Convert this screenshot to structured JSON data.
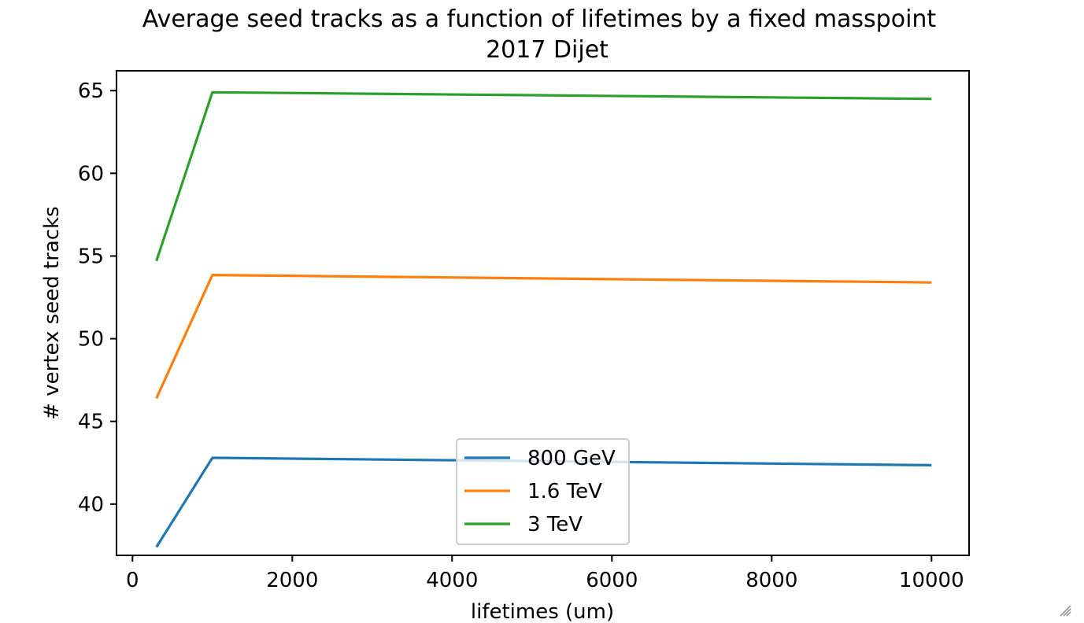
{
  "chart_data": {
    "type": "line",
    "title": "Average seed tracks as a function of lifetimes by a fixed masspoint",
    "subtitle": "2017 Dijet",
    "xlabel": "lifetimes (um)",
    "ylabel": "# vertex seed tracks",
    "x": [
      300,
      1000,
      10000
    ],
    "xlim": [
      -200,
      10470
    ],
    "ylim": [
      36.9,
      66.2
    ],
    "xticks": [
      0,
      2000,
      4000,
      6000,
      8000,
      10000
    ],
    "yticks": [
      40,
      45,
      50,
      55,
      60,
      65
    ],
    "grid": false,
    "legend_position": "lower center",
    "series": [
      {
        "name": "800 GeV",
        "color": "#1f77b4",
        "values": [
          37.4,
          42.8,
          42.35
        ]
      },
      {
        "name": "1.6 TeV",
        "color": "#ff7f0e",
        "values": [
          46.4,
          53.85,
          53.4
        ]
      },
      {
        "name": "3 TeV",
        "color": "#2ca02c",
        "values": [
          54.7,
          64.9,
          64.5
        ]
      }
    ]
  },
  "ui": {
    "resize_icon": "resize-grip-icon"
  }
}
